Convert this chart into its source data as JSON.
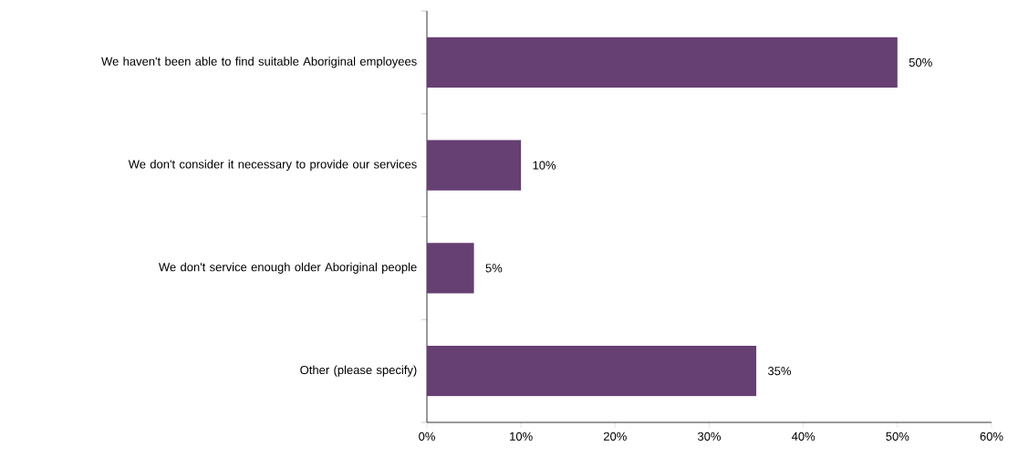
{
  "chart_data": {
    "type": "bar",
    "orientation": "horizontal",
    "categories": [
      "We haven't been able to find suitable Aboriginal employees",
      "We don't consider it necessary to provide our services",
      "We don't service enough older Aboriginal people",
      "Other (please specify)"
    ],
    "values": [
      50,
      10,
      5,
      35
    ],
    "value_labels": [
      "50%",
      "10%",
      "5%",
      "35%"
    ],
    "color": "#663f73",
    "xlim": [
      0,
      60
    ],
    "xticks": [
      {
        "value": 0,
        "label": "0%"
      },
      {
        "value": 10,
        "label": "10%"
      },
      {
        "value": 20,
        "label": "20%"
      },
      {
        "value": 30,
        "label": "30%"
      },
      {
        "value": 40,
        "label": "40%"
      },
      {
        "value": 50,
        "label": "50%"
      },
      {
        "value": 60,
        "label": "60%"
      }
    ]
  }
}
